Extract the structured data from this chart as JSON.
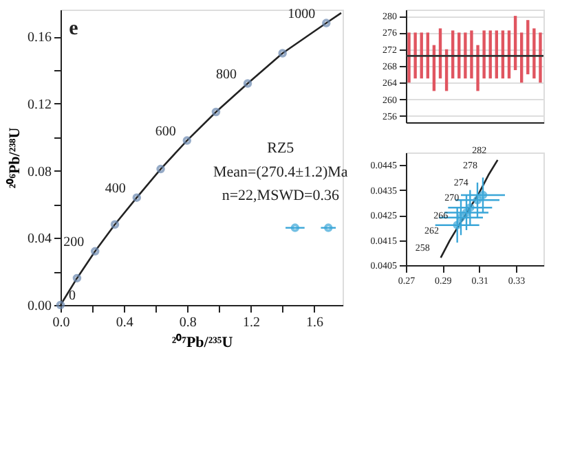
{
  "chart_data": [
    {
      "type": "line",
      "xlabel": "²⁰⁷Pb/²³⁵U",
      "ylabel": "²⁰⁶Pb/²³⁸U",
      "xlim": [
        0,
        1.78
      ],
      "ylim": [
        0,
        0.176
      ],
      "grid": false,
      "xticks": [
        {
          "value": 0,
          "label": "0.0"
        },
        {
          "value": 0.2,
          "label": null
        },
        0.4,
        {
          "value": 0.6,
          "label": null
        },
        0.8,
        {
          "value": 1.0,
          "label": null
        },
        1.2,
        {
          "value": 1.4,
          "label": null
        },
        1.6
      ],
      "yticks": [
        {
          "value": 0,
          "label": "0.00"
        },
        {
          "value": 0.02,
          "label": null
        },
        0.04,
        {
          "value": 0.06,
          "label": null
        },
        0.08,
        {
          "value": 0.1,
          "label": null
        },
        0.12,
        {
          "value": 0.14,
          "label": null
        },
        0.16
      ],
      "series": [
        {
          "type": "line",
          "color": "#222222",
          "marker": "none",
          "x": [
            0,
            0.104,
            0.218,
            0.343,
            0.481,
            0.632,
            0.798,
            0.981,
            1.181,
            1.401,
            1.677,
            1.771
          ],
          "values": [
            0,
            0.016,
            0.032,
            0.048,
            0.064,
            0.081,
            0.098,
            0.115,
            0.132,
            0.15,
            0.168,
            0.174
          ]
        },
        {
          "type": "scatter",
          "color": "#6a88b0",
          "marker": "circle",
          "x": [
            0,
            0.104,
            0.218,
            0.343,
            0.481,
            0.632,
            0.798,
            0.981,
            1.181,
            1.401,
            1.677
          ],
          "values": [
            0,
            0.016,
            0.032,
            0.048,
            0.064,
            0.081,
            0.098,
            0.115,
            0.132,
            0.15,
            0.168
          ]
        },
        {
          "type": "scatter",
          "color": "#3aa6d8",
          "marker": "circle",
          "x": [
            1.48,
            1.69
          ],
          "values": [
            0.046,
            0.046
          ],
          "xerrors": [
            0.06,
            0.047
          ]
        }
      ],
      "annotations": [
        "e",
        "RZ5",
        "Mean=(270.4±1.2)Ma",
        "n=22,MSWD=0.36",
        {
          "text": "0",
          "x": 0,
          "y": 0
        },
        {
          "text": "200",
          "x": 0.218,
          "y": 0.032
        },
        {
          "text": "400",
          "x": 0.481,
          "y": 0.064
        },
        {
          "text": "600",
          "x": 0.798,
          "y": 0.098
        },
        {
          "text": "800",
          "x": 1.181,
          "y": 0.132
        },
        {
          "text": "1000",
          "x": 1.677,
          "y": 0.168
        }
      ]
    },
    {
      "type": "bar",
      "categories": [
        null,
        null,
        null,
        null,
        null,
        null,
        null,
        null,
        null,
        null,
        null,
        null,
        null,
        null,
        null,
        null,
        null,
        null,
        null,
        null,
        null,
        null
      ],
      "base": [
        264,
        265,
        265,
        265,
        262,
        265,
        262,
        265,
        265,
        265,
        265,
        262,
        265,
        265,
        265,
        265,
        265,
        267,
        264,
        266,
        265,
        264
      ],
      "values": [
        12,
        11,
        11,
        11,
        11,
        12,
        10,
        11.5,
        11,
        11,
        11.5,
        11,
        11.5,
        11.5,
        11.5,
        11.5,
        11.5,
        13,
        12,
        13,
        12,
        12
      ],
      "color": "#e05560",
      "ylim": [
        254.5,
        281.5
      ],
      "yticks": [
        256,
        260,
        264,
        268,
        272,
        276,
        280
      ],
      "grid": "y",
      "ref_lines": [
        {
          "axis": "y",
          "value": 270.4,
          "color": "#333333"
        }
      ]
    },
    {
      "type": "line",
      "xlim": [
        0.27,
        0.345
      ],
      "ylim": [
        0.0405,
        0.045
      ],
      "xticks": [
        0.27,
        0.29,
        0.31,
        0.33
      ],
      "yticks": [
        0.0405,
        0.0415,
        0.0425,
        0.0435,
        0.0445
      ],
      "grid": false,
      "series": [
        {
          "type": "line",
          "color": "#222222",
          "marker": "none",
          "x": [
            0.289,
            0.294,
            0.299,
            0.305,
            0.31,
            0.315,
            0.32
          ],
          "values": [
            0.0408,
            0.0415,
            0.0421,
            0.0428,
            0.0434,
            0.0441,
            0.0447
          ]
        },
        {
          "type": "scatter",
          "color": "#3aa6d8",
          "marker": "circle",
          "x": [
            0.3,
            0.305,
            0.309,
            0.303,
            0.312,
            0.298
          ],
          "values": [
            0.0424,
            0.0428,
            0.0431,
            0.0426,
            0.0433,
            0.0421
          ],
          "xerrors": [
            0.012,
            0.012,
            0.012,
            0.012,
            0.012,
            0.012
          ],
          "errors": [
            0.0007,
            0.0007,
            0.0007,
            0.0007,
            0.0007,
            0.0007
          ]
        }
      ],
      "annotations": [
        {
          "text": "258",
          "x": 0.289,
          "y": 0.0408
        },
        {
          "text": "262",
          "x": 0.294,
          "y": 0.0415
        },
        {
          "text": "266",
          "x": 0.299,
          "y": 0.0421
        },
        {
          "text": "270",
          "x": 0.305,
          "y": 0.0428
        },
        {
          "text": "274",
          "x": 0.31,
          "y": 0.0434
        },
        {
          "text": "278",
          "x": 0.315,
          "y": 0.0441
        },
        {
          "text": "282",
          "x": 0.32,
          "y": 0.0447
        }
      ]
    }
  ]
}
